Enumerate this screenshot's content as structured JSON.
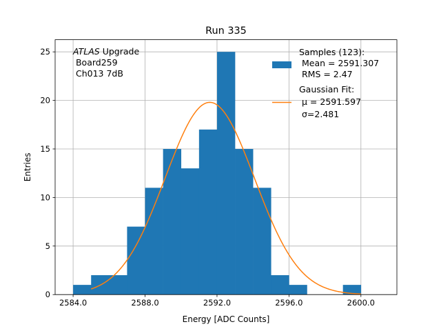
{
  "chart_data": {
    "type": "histogram",
    "title": "Run 335",
    "xlabel": "Energy [ADC Counts]",
    "ylabel": "Entries",
    "xlim": [
      2583.0,
      2602.0
    ],
    "ylim": [
      0,
      26.25
    ],
    "grid": true,
    "xticks": [
      2584.0,
      2588.0,
      2592.0,
      2596.0,
      2600.0
    ],
    "xtick_labels": [
      "2584.0",
      "2588.0",
      "2592.0",
      "2596.0",
      "2600.0"
    ],
    "yticks": [
      0,
      5,
      10,
      15,
      20,
      25
    ],
    "ytick_labels": [
      "0",
      "5",
      "10",
      "15",
      "20",
      "25"
    ],
    "bin_width": 1.0,
    "bins": [
      {
        "start": 2584,
        "count": 1
      },
      {
        "start": 2585,
        "count": 2
      },
      {
        "start": 2586,
        "count": 2
      },
      {
        "start": 2587,
        "count": 7
      },
      {
        "start": 2588,
        "count": 11
      },
      {
        "start": 2589,
        "count": 15
      },
      {
        "start": 2590,
        "count": 13
      },
      {
        "start": 2591,
        "count": 17
      },
      {
        "start": 2592,
        "count": 25
      },
      {
        "start": 2593,
        "count": 15
      },
      {
        "start": 2594,
        "count": 11
      },
      {
        "start": 2595,
        "count": 2
      },
      {
        "start": 2596,
        "count": 1
      },
      {
        "start": 2597,
        "count": 0
      },
      {
        "start": 2598,
        "count": 0
      },
      {
        "start": 2599,
        "count": 1
      }
    ],
    "fit": {
      "type": "gaussian",
      "amplitude": 19.8,
      "mu": 2591.597,
      "sigma": 2.481,
      "x_range": [
        2585.0,
        2600.0
      ]
    },
    "colors": {
      "histogram": "#1f77b4",
      "fit": "#ff7f0e",
      "grid": "#b0b0b0"
    },
    "annotation": {
      "lines": [
        "ATLAS Upgrade",
        " Board259",
        " Ch013 7dB"
      ],
      "italic_word": "ATLAS",
      "rest_of_first_line": " Upgrade"
    },
    "legend": {
      "position": "upper right",
      "histogram_entry": [
        "Samples (123):",
        " Mean = 2591.307",
        " RMS = 2.47"
      ],
      "fit_entry": [
        "Gaussian Fit:",
        "μ = 2591.597",
        "σ=2.481"
      ]
    }
  }
}
